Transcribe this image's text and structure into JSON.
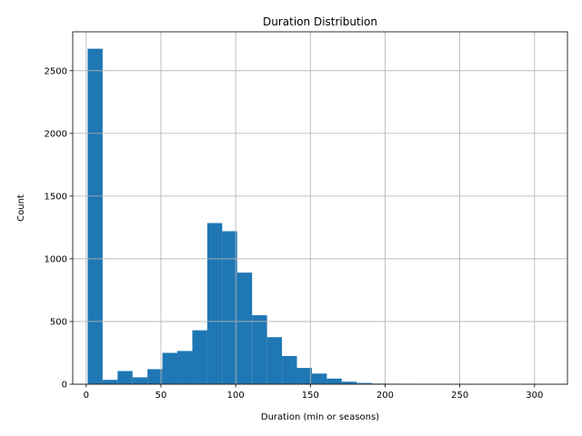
{
  "chart_data": {
    "type": "bar",
    "title": "Duration Distribution",
    "xlabel": "Duration (min or seasons)",
    "ylabel": "Count",
    "bin_width": 10,
    "bin_starts": [
      1,
      11,
      21,
      31,
      41,
      51,
      61,
      71,
      81,
      91,
      101,
      111,
      121,
      131,
      141,
      151,
      161,
      171,
      181,
      191,
      201,
      211,
      221,
      231,
      241,
      251,
      261,
      271,
      281,
      291,
      301
    ],
    "values": [
      2675,
      35,
      105,
      55,
      120,
      250,
      265,
      430,
      1285,
      1220,
      890,
      550,
      375,
      225,
      130,
      85,
      45,
      20,
      10,
      5,
      4,
      3,
      2,
      1,
      1,
      0,
      0,
      0,
      0,
      0,
      1
    ],
    "xlim": [
      -9,
      322
    ],
    "ylim": [
      0,
      2810
    ],
    "xticks": [
      0,
      50,
      100,
      150,
      200,
      250,
      300
    ],
    "yticks": [
      0,
      500,
      1000,
      1500,
      2000,
      2500
    ],
    "grid": true,
    "bar_color": "#1f77b4",
    "grid_color": "#b0b0b0"
  }
}
